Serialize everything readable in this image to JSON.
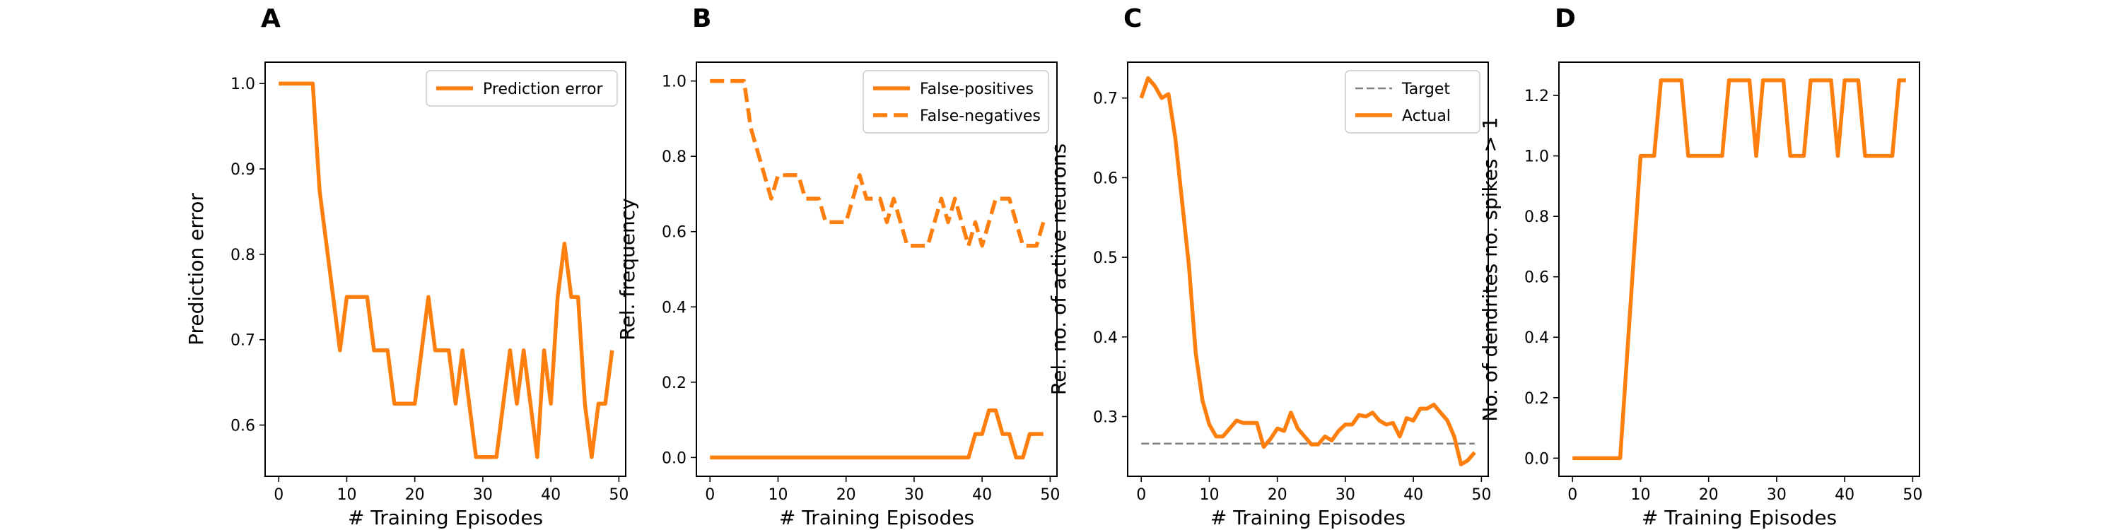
{
  "colors": {
    "orange": "#ff7f0e",
    "target": "#7f7f7f"
  },
  "chart_data": [
    {
      "panel": "A",
      "type": "line",
      "xlabel": "# Training Episodes",
      "ylabel": "Prediction error",
      "xlim": [
        -2,
        51
      ],
      "ylim": [
        0.54,
        1.025
      ],
      "xticks": [
        0,
        10,
        20,
        30,
        40,
        50
      ],
      "xtick_labels": [
        "0",
        "10",
        "20",
        "30",
        "40",
        "50"
      ],
      "yticks": [
        0.6,
        0.7,
        0.8,
        0.9,
        1.0
      ],
      "ytick_labels": [
        "0.6",
        "0.7",
        "0.8",
        "0.9",
        "1.0"
      ],
      "grid": false,
      "legend_position": "top-right",
      "series": [
        {
          "name": "Prediction error",
          "style": "solid",
          "color": "#ff7f0e",
          "x": [
            0,
            1,
            2,
            3,
            4,
            5,
            6,
            7,
            8,
            9,
            10,
            11,
            12,
            13,
            14,
            15,
            16,
            17,
            18,
            19,
            20,
            21,
            22,
            23,
            24,
            25,
            26,
            27,
            28,
            29,
            30,
            31,
            32,
            33,
            34,
            35,
            36,
            37,
            38,
            39,
            40,
            41,
            42,
            43,
            44,
            45,
            46,
            47,
            48,
            49
          ],
          "y": [
            1.0,
            1.0,
            1.0,
            1.0,
            1.0,
            1.0,
            0.875,
            0.8125,
            0.75,
            0.6875,
            0.75,
            0.75,
            0.75,
            0.75,
            0.6875,
            0.6875,
            0.6875,
            0.625,
            0.625,
            0.625,
            0.625,
            0.6875,
            0.75,
            0.6875,
            0.6875,
            0.6875,
            0.625,
            0.6875,
            0.625,
            0.5625,
            0.5625,
            0.5625,
            0.5625,
            0.625,
            0.6875,
            0.625,
            0.6875,
            0.625,
            0.5625,
            0.6875,
            0.625,
            0.75,
            0.8125,
            0.75,
            0.75,
            0.625,
            0.5625,
            0.625,
            0.625,
            0.6875
          ]
        }
      ]
    },
    {
      "panel": "B",
      "type": "line",
      "xlabel": "# Training Episodes",
      "ylabel": "Rel. frequency",
      "xlim": [
        -2,
        51
      ],
      "ylim": [
        -0.05,
        1.05
      ],
      "xticks": [
        0,
        10,
        20,
        30,
        40,
        50
      ],
      "xtick_labels": [
        "0",
        "10",
        "20",
        "30",
        "40",
        "50"
      ],
      "yticks": [
        0.0,
        0.2,
        0.4,
        0.6,
        0.8,
        1.0
      ],
      "ytick_labels": [
        "0.0",
        "0.2",
        "0.4",
        "0.6",
        "0.8",
        "1.0"
      ],
      "grid": false,
      "legend_position": "top-right",
      "series": [
        {
          "name": "False-positives",
          "style": "solid",
          "color": "#ff7f0e",
          "x": [
            0,
            1,
            2,
            3,
            4,
            5,
            6,
            7,
            8,
            9,
            10,
            11,
            12,
            13,
            14,
            15,
            16,
            17,
            18,
            19,
            20,
            21,
            22,
            23,
            24,
            25,
            26,
            27,
            28,
            29,
            30,
            31,
            32,
            33,
            34,
            35,
            36,
            37,
            38,
            39,
            40,
            41,
            42,
            43,
            44,
            45,
            46,
            47,
            48,
            49
          ],
          "y": [
            0,
            0,
            0,
            0,
            0,
            0,
            0,
            0,
            0,
            0,
            0,
            0,
            0,
            0,
            0,
            0,
            0,
            0,
            0,
            0,
            0,
            0,
            0,
            0,
            0,
            0,
            0,
            0,
            0,
            0,
            0,
            0,
            0,
            0,
            0,
            0,
            0,
            0,
            0,
            0.0625,
            0.0625,
            0.125,
            0.125,
            0.0625,
            0.0625,
            0,
            0,
            0.0625,
            0.0625,
            0.0625
          ]
        },
        {
          "name": "False-negatives",
          "style": "dashed",
          "color": "#ff7f0e",
          "x": [
            0,
            1,
            2,
            3,
            4,
            5,
            6,
            7,
            8,
            9,
            10,
            11,
            12,
            13,
            14,
            15,
            16,
            17,
            18,
            19,
            20,
            21,
            22,
            23,
            24,
            25,
            26,
            27,
            28,
            29,
            30,
            31,
            32,
            33,
            34,
            35,
            36,
            37,
            38,
            39,
            40,
            41,
            42,
            43,
            44,
            45,
            46,
            47,
            48,
            49
          ],
          "y": [
            1.0,
            1.0,
            1.0,
            1.0,
            1.0,
            1.0,
            0.875,
            0.8125,
            0.75,
            0.6875,
            0.75,
            0.75,
            0.75,
            0.75,
            0.6875,
            0.6875,
            0.6875,
            0.625,
            0.625,
            0.625,
            0.625,
            0.6875,
            0.75,
            0.6875,
            0.6875,
            0.6875,
            0.625,
            0.6875,
            0.625,
            0.5625,
            0.5625,
            0.5625,
            0.5625,
            0.625,
            0.6875,
            0.625,
            0.6875,
            0.625,
            0.5625,
            0.625,
            0.5625,
            0.625,
            0.6875,
            0.6875,
            0.6875,
            0.625,
            0.5625,
            0.5625,
            0.5625,
            0.625
          ]
        }
      ]
    },
    {
      "panel": "C",
      "type": "line",
      "xlabel": "# Training Episodes",
      "ylabel": "Rel. no. of active neurons",
      "xlim": [
        -2,
        51
      ],
      "ylim": [
        0.225,
        0.745
      ],
      "xticks": [
        0,
        10,
        20,
        30,
        40,
        50
      ],
      "xtick_labels": [
        "0",
        "10",
        "20",
        "30",
        "40",
        "50"
      ],
      "yticks": [
        0.3,
        0.4,
        0.5,
        0.6,
        0.7
      ],
      "ytick_labels": [
        "0.3",
        "0.4",
        "0.5",
        "0.6",
        "0.7"
      ],
      "grid": false,
      "legend_position": "top-right",
      "series": [
        {
          "name": "Target",
          "style": "dashed-thin",
          "color": "#7f7f7f",
          "x": [
            0,
            49
          ],
          "y": [
            0.266,
            0.266
          ]
        },
        {
          "name": "Actual",
          "style": "solid",
          "color": "#ff7f0e",
          "x": [
            0,
            1,
            2,
            3,
            4,
            5,
            6,
            7,
            8,
            9,
            10,
            11,
            12,
            13,
            14,
            15,
            16,
            17,
            18,
            19,
            20,
            21,
            22,
            23,
            24,
            25,
            26,
            27,
            28,
            29,
            30,
            31,
            32,
            33,
            34,
            35,
            36,
            37,
            38,
            39,
            40,
            41,
            42,
            43,
            44,
            45,
            46,
            47,
            48,
            49
          ],
          "y": [
            0.7,
            0.725,
            0.715,
            0.7,
            0.705,
            0.65,
            0.57,
            0.49,
            0.38,
            0.32,
            0.29,
            0.275,
            0.275,
            0.285,
            0.295,
            0.292,
            0.292,
            0.292,
            0.262,
            0.272,
            0.285,
            0.282,
            0.305,
            0.285,
            0.275,
            0.265,
            0.265,
            0.275,
            0.27,
            0.282,
            0.29,
            0.29,
            0.302,
            0.3,
            0.305,
            0.295,
            0.29,
            0.292,
            0.275,
            0.298,
            0.295,
            0.31,
            0.31,
            0.315,
            0.305,
            0.295,
            0.275,
            0.24,
            0.245,
            0.255
          ]
        }
      ]
    },
    {
      "panel": "D",
      "type": "line",
      "xlabel": "# Training Episodes",
      "ylabel": "No. of dendrites no. spikes > 1",
      "xlim": [
        -2,
        51
      ],
      "ylim": [
        -0.06,
        1.31
      ],
      "xticks": [
        0,
        10,
        20,
        30,
        40,
        50
      ],
      "xtick_labels": [
        "0",
        "10",
        "20",
        "30",
        "40",
        "50"
      ],
      "yticks": [
        0.0,
        0.2,
        0.4,
        0.6,
        0.8,
        1.0,
        1.2
      ],
      "ytick_labels": [
        "0.0",
        "0.2",
        "0.4",
        "0.6",
        "0.8",
        "1.0",
        "1.2"
      ],
      "grid": false,
      "series": [
        {
          "name": "",
          "style": "solid",
          "color": "#ff7f0e",
          "x": [
            0,
            1,
            2,
            3,
            4,
            5,
            6,
            7,
            8,
            9,
            10,
            11,
            12,
            13,
            14,
            15,
            16,
            17,
            18,
            19,
            20,
            21,
            22,
            23,
            24,
            25,
            26,
            27,
            28,
            29,
            30,
            31,
            32,
            33,
            34,
            35,
            36,
            37,
            38,
            39,
            40,
            41,
            42,
            43,
            44,
            45,
            46,
            47,
            48,
            49
          ],
          "y": [
            0,
            0,
            0,
            0,
            0,
            0,
            0,
            0,
            0.3333,
            0.6667,
            1.0,
            1.0,
            1.0,
            1.25,
            1.25,
            1.25,
            1.25,
            1.0,
            1.0,
            1.0,
            1.0,
            1.0,
            1.0,
            1.25,
            1.25,
            1.25,
            1.25,
            1.0,
            1.25,
            1.25,
            1.25,
            1.25,
            1.0,
            1.0,
            1.0,
            1.25,
            1.25,
            1.25,
            1.25,
            1.0,
            1.25,
            1.25,
            1.25,
            1.0,
            1.0,
            1.0,
            1.0,
            1.0,
            1.25,
            1.25
          ]
        }
      ]
    }
  ]
}
